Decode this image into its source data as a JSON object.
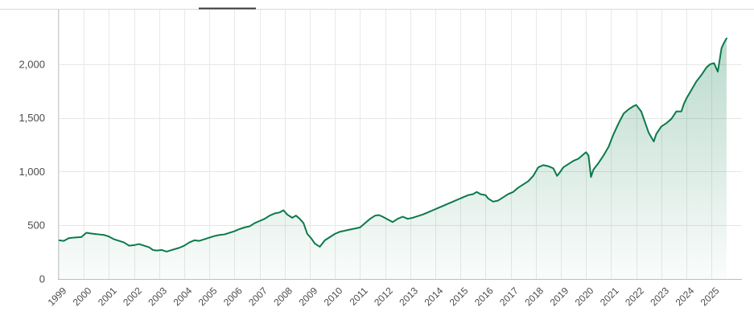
{
  "chart_data": {
    "type": "area",
    "xlim": [
      1999.0,
      2025.6
    ],
    "ylim": [
      0,
      2400
    ],
    "y_ticks": [
      0,
      500,
      1000,
      1500,
      2000
    ],
    "y_tick_labels": [
      "0",
      "500",
      "1,000",
      "1,500",
      "2,000"
    ],
    "x_ticks": [
      1999,
      2000,
      2001,
      2002,
      2003,
      2004,
      2005,
      2006,
      2007,
      2008,
      2009,
      2010,
      2011,
      2012,
      2013,
      2014,
      2015,
      2016,
      2017,
      2018,
      2019,
      2020,
      2021,
      2022,
      2023,
      2024,
      2025
    ],
    "x_tick_labels": [
      "1999",
      "2000",
      "2001",
      "2002",
      "2003",
      "2004",
      "2005",
      "2006",
      "2007",
      "2008",
      "2009",
      "2010",
      "2011",
      "2012",
      "2013",
      "2014",
      "2015",
      "2016",
      "2017",
      "2018",
      "2019",
      "2020",
      "2021",
      "2022",
      "2023",
      "2024",
      "2025"
    ],
    "grid": true,
    "line_color": "#0b7a4b",
    "fill_color": "#0b7a4b",
    "series": [
      {
        "x": [
          1999.0,
          1999.2,
          1999.4,
          1999.6,
          1999.9,
          2000.1,
          2000.25,
          2000.4,
          2000.6,
          2000.8,
          2001.0,
          2001.2,
          2001.4,
          2001.6,
          2001.8,
          2002.0,
          2002.2,
          2002.4,
          2002.6,
          2002.75,
          2002.9,
          2003.1,
          2003.3,
          2003.5,
          2003.8,
          2004.0,
          2004.2,
          2004.4,
          2004.6,
          2004.8,
          2005.0,
          2005.2,
          2005.4,
          2005.6,
          2005.8,
          2006.0,
          2006.2,
          2006.4,
          2006.6,
          2006.8,
          2007.0,
          2007.2,
          2007.4,
          2007.6,
          2007.8,
          2007.95,
          2008.1,
          2008.3,
          2008.45,
          2008.6,
          2008.75,
          2008.9,
          2009.05,
          2009.2,
          2009.4,
          2009.6,
          2009.8,
          2010.0,
          2010.2,
          2010.4,
          2010.6,
          2010.8,
          2011.0,
          2011.2,
          2011.4,
          2011.6,
          2011.75,
          2011.9,
          2012.1,
          2012.3,
          2012.5,
          2012.7,
          2012.9,
          2013.1,
          2013.3,
          2013.5,
          2013.7,
          2013.9,
          2014.1,
          2014.3,
          2014.5,
          2014.7,
          2014.9,
          2015.1,
          2015.3,
          2015.5,
          2015.65,
          2015.8,
          2016.0,
          2016.1,
          2016.3,
          2016.5,
          2016.7,
          2016.9,
          2017.1,
          2017.3,
          2017.5,
          2017.7,
          2017.9,
          2018.0,
          2018.1,
          2018.3,
          2018.5,
          2018.7,
          2018.85,
          2018.95,
          2019.1,
          2019.3,
          2019.5,
          2019.7,
          2019.9,
          2020.0,
          2020.1,
          2020.2,
          2020.3,
          2020.5,
          2020.7,
          2020.9,
          2021.1,
          2021.3,
          2021.5,
          2021.7,
          2021.9,
          2022.0,
          2022.2,
          2022.35,
          2022.5,
          2022.7,
          2022.8,
          2023.0,
          2023.2,
          2023.4,
          2023.6,
          2023.8,
          2023.9,
          2024.0,
          2024.2,
          2024.4,
          2024.6,
          2024.8,
          2024.95,
          2025.1,
          2025.25,
          2025.4,
          2025.5,
          2025.6
        ],
        "values": [
          360,
          355,
          380,
          385,
          390,
          430,
          425,
          420,
          415,
          410,
          395,
          370,
          355,
          340,
          310,
          315,
          325,
          310,
          295,
          270,
          265,
          270,
          255,
          270,
          290,
          310,
          340,
          360,
          355,
          370,
          385,
          400,
          410,
          415,
          430,
          445,
          465,
          480,
          490,
          520,
          540,
          560,
          590,
          610,
          620,
          640,
          600,
          570,
          590,
          560,
          520,
          420,
          380,
          330,
          300,
          360,
          390,
          420,
          440,
          450,
          460,
          470,
          480,
          520,
          560,
          590,
          595,
          580,
          555,
          530,
          560,
          580,
          560,
          570,
          585,
          600,
          620,
          640,
          660,
          680,
          700,
          720,
          740,
          760,
          780,
          790,
          810,
          790,
          780,
          750,
          720,
          730,
          760,
          790,
          810,
          850,
          880,
          910,
          960,
          1000,
          1040,
          1060,
          1050,
          1030,
          960,
          990,
          1040,
          1070,
          1100,
          1120,
          1160,
          1180,
          1150,
          950,
          1020,
          1080,
          1150,
          1230,
          1350,
          1450,
          1540,
          1580,
          1610,
          1620,
          1560,
          1460,
          1360,
          1280,
          1350,
          1420,
          1450,
          1490,
          1560,
          1560,
          1630,
          1680,
          1760,
          1840,
          1900,
          1970,
          2000,
          2010,
          1930,
          2150,
          2200,
          2240
        ]
      }
    ]
  }
}
